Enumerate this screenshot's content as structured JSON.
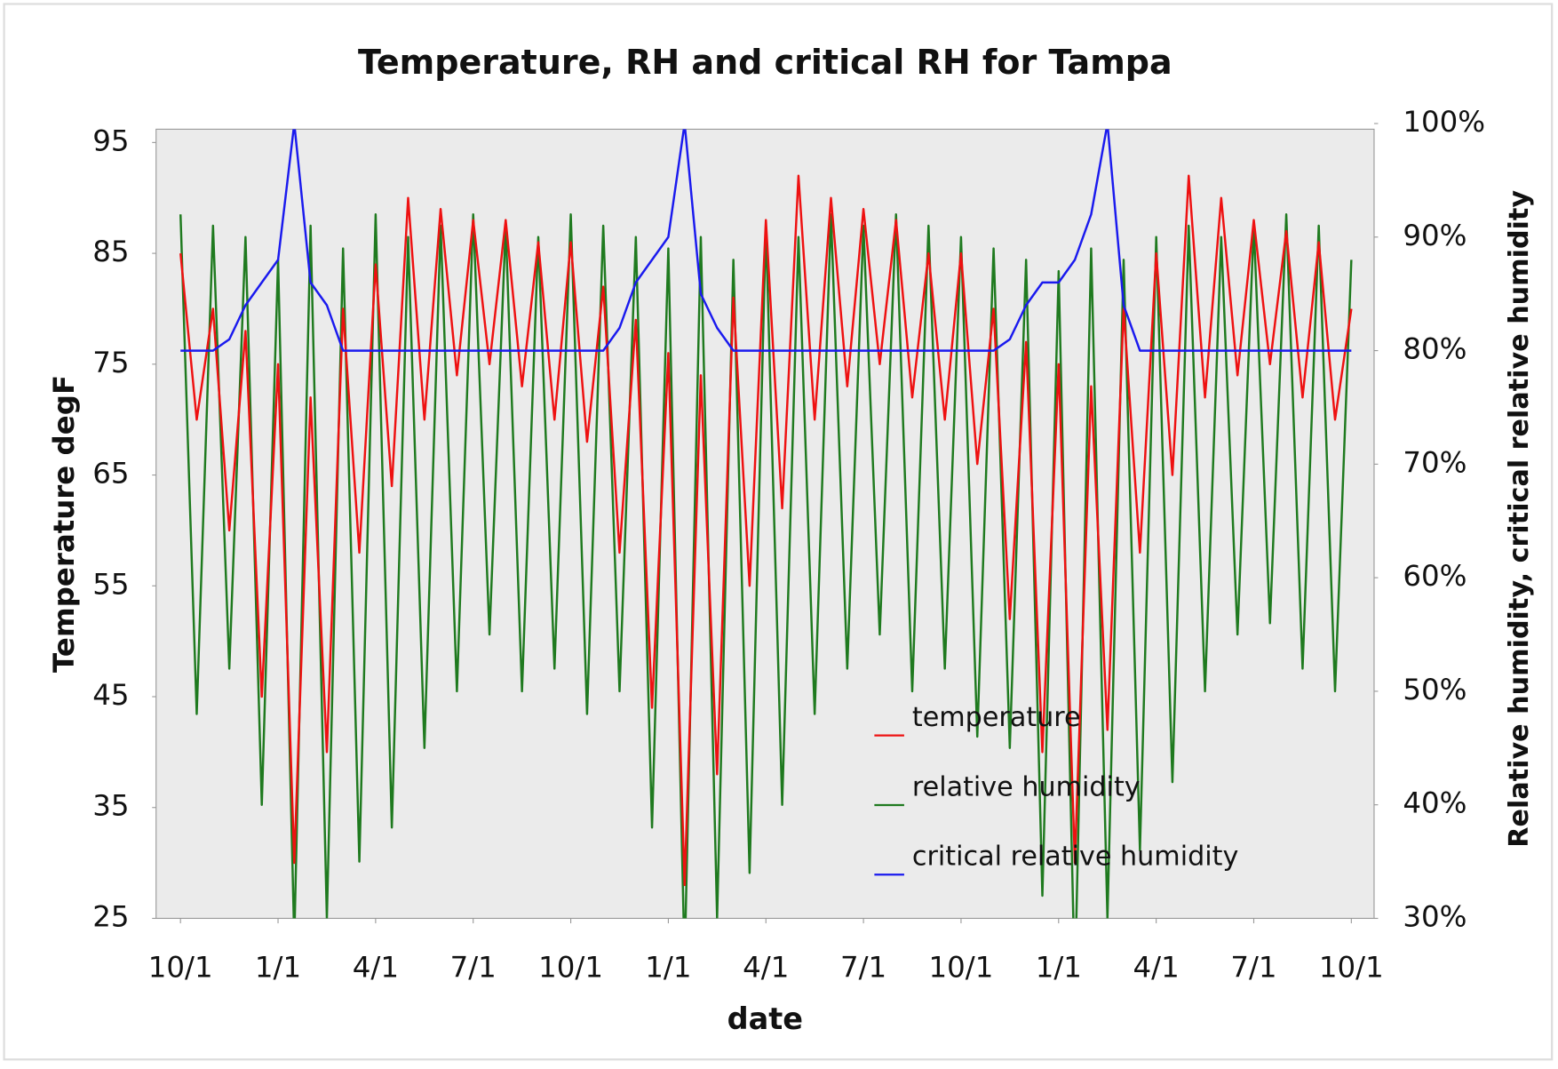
{
  "chart_data": {
    "type": "line",
    "title": "Temperature, RH and critical RH for Tampa",
    "xlabel": "date",
    "ylabel": "Temperature degF",
    "y2label": "Relative humidity, critical relative humidity",
    "xlim": [
      -0.75,
      36.7
    ],
    "xticks": [
      {
        "value": 0,
        "label": "10/1"
      },
      {
        "value": 3,
        "label": "1/1"
      },
      {
        "value": 6,
        "label": "4/1"
      },
      {
        "value": 9,
        "label": "7/1"
      },
      {
        "value": 12,
        "label": "10/1"
      },
      {
        "value": 15,
        "label": "1/1"
      },
      {
        "value": 18,
        "label": "4/1"
      },
      {
        "value": 21,
        "label": "7/1"
      },
      {
        "value": 24,
        "label": "10/1"
      },
      {
        "value": 27,
        "label": "1/1"
      },
      {
        "value": 30,
        "label": "4/1"
      },
      {
        "value": 33,
        "label": "7/1"
      },
      {
        "value": 36,
        "label": "10/1"
      }
    ],
    "ylim": [
      25,
      96.2
    ],
    "yticks": [
      25,
      35,
      45,
      55,
      65,
      75,
      85,
      95
    ],
    "y2lim": [
      30,
      99.5
    ],
    "y2ticks": [
      {
        "value": 30,
        "label": "30%"
      },
      {
        "value": 40,
        "label": "40%"
      },
      {
        "value": 50,
        "label": "50%"
      },
      {
        "value": 60,
        "label": "60%"
      },
      {
        "value": 70,
        "label": "70%"
      },
      {
        "value": 80,
        "label": "80%"
      },
      {
        "value": 90,
        "label": "90%"
      },
      {
        "value": 100,
        "label": "100%"
      }
    ],
    "grid": false,
    "legend": "lower right",
    "x": [
      0,
      0.5,
      1,
      1.5,
      2,
      2.5,
      3,
      3.5,
      4,
      4.5,
      5,
      5.5,
      6,
      6.5,
      7,
      7.5,
      8,
      8.5,
      9,
      9.5,
      10,
      10.5,
      11,
      11.5,
      12,
      12.5,
      13,
      13.5,
      14,
      14.5,
      15,
      15.5,
      16,
      16.5,
      17,
      17.5,
      18,
      18.5,
      19,
      19.5,
      20,
      20.5,
      21,
      21.5,
      22,
      22.5,
      23,
      23.5,
      24,
      24.5,
      25,
      25.5,
      26,
      26.5,
      27,
      27.5,
      28,
      28.5,
      29,
      29.5,
      30,
      30.5,
      31,
      31.5,
      32,
      32.5,
      33,
      33.5,
      34,
      34.5,
      35,
      35.5,
      36
    ],
    "series": [
      {
        "name": "relative humidity",
        "color": "#1f7a1f",
        "axis": "y2",
        "values": [
          92,
          48,
          91,
          52,
          90,
          40,
          88,
          28,
          91,
          30,
          89,
          35,
          92,
          38,
          90,
          45,
          91,
          50,
          92,
          55,
          91,
          50,
          90,
          52,
          92,
          48,
          91,
          50,
          90,
          38,
          89,
          26,
          90,
          30,
          88,
          34,
          91,
          40,
          90,
          48,
          92,
          52,
          91,
          55,
          92,
          50,
          91,
          52,
          90,
          46,
          89,
          45,
          88,
          32,
          87,
          24,
          89,
          30,
          88,
          36,
          90,
          42,
          91,
          50,
          90,
          55,
          91,
          56,
          92,
          52,
          91,
          50,
          88
        ]
      },
      {
        "name": "temperature",
        "color": "#ee1111",
        "axis": "y",
        "values": [
          85,
          70,
          80,
          60,
          78,
          45,
          75,
          30,
          72,
          40,
          80,
          58,
          84,
          64,
          90,
          70,
          89,
          74,
          88,
          75,
          88,
          73,
          86,
          70,
          86,
          68,
          82,
          58,
          79,
          44,
          76,
          28,
          74,
          38,
          81,
          55,
          88,
          62,
          92,
          70,
          90,
          73,
          89,
          75,
          88,
          72,
          85,
          70,
          85,
          66,
          80,
          52,
          77,
          40,
          75,
          30,
          73,
          42,
          80,
          58,
          85,
          65,
          92,
          72,
          90,
          74,
          88,
          75,
          87,
          72,
          86,
          70,
          80
        ]
      },
      {
        "name": "critical relative humidity",
        "color": "#1a1aee",
        "axis": "y2",
        "values": [
          80,
          80,
          80,
          81,
          84,
          86,
          88,
          100,
          86,
          84,
          80,
          80,
          80,
          80,
          80,
          80,
          80,
          80,
          80,
          80,
          80,
          80,
          80,
          80,
          80,
          80,
          80,
          82,
          86,
          88,
          90,
          100,
          85,
          82,
          80,
          80,
          80,
          80,
          80,
          80,
          80,
          80,
          80,
          80,
          80,
          80,
          80,
          80,
          80,
          80,
          80,
          81,
          84,
          86,
          86,
          88,
          92,
          100,
          84,
          80,
          80,
          80,
          80,
          80,
          80,
          80,
          80,
          80,
          80,
          80,
          80,
          80,
          80
        ]
      }
    ]
  }
}
